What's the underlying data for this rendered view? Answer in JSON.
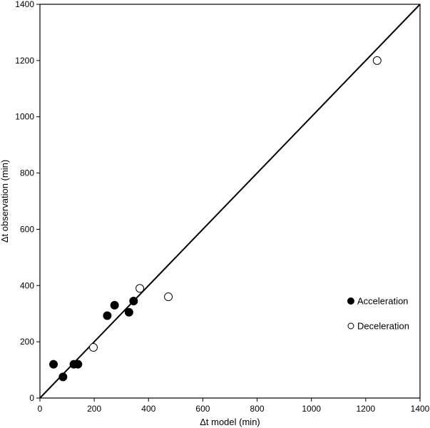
{
  "chart_data": {
    "type": "scatter",
    "title": "",
    "xlabel": "Δt model (min)",
    "ylabel": "Δt observation (min)",
    "xlim": [
      0,
      1400
    ],
    "ylim": [
      0,
      1400
    ],
    "xticks": [
      0,
      200,
      400,
      600,
      800,
      1000,
      1200,
      1400
    ],
    "yticks": [
      0,
      200,
      400,
      600,
      800,
      1000,
      1200,
      1400
    ],
    "grid": false,
    "legend_position": "center-right",
    "reference_line": {
      "type": "identity",
      "from": [
        0,
        0
      ],
      "to": [
        1400,
        1400
      ]
    },
    "series": [
      {
        "name": "Acceleration",
        "marker": "filled-circle",
        "color": "#000000",
        "points": [
          {
            "x": 50,
            "y": 120
          },
          {
            "x": 85,
            "y": 75
          },
          {
            "x": 125,
            "y": 120
          },
          {
            "x": 140,
            "y": 120
          },
          {
            "x": 248,
            "y": 293
          },
          {
            "x": 275,
            "y": 330
          },
          {
            "x": 328,
            "y": 305
          },
          {
            "x": 345,
            "y": 345
          }
        ]
      },
      {
        "name": "Deceleration",
        "marker": "open-circle",
        "color": "#000000",
        "points": [
          {
            "x": 197,
            "y": 180
          },
          {
            "x": 368,
            "y": 390
          },
          {
            "x": 473,
            "y": 360
          },
          {
            "x": 1242,
            "y": 1200
          }
        ]
      }
    ]
  }
}
